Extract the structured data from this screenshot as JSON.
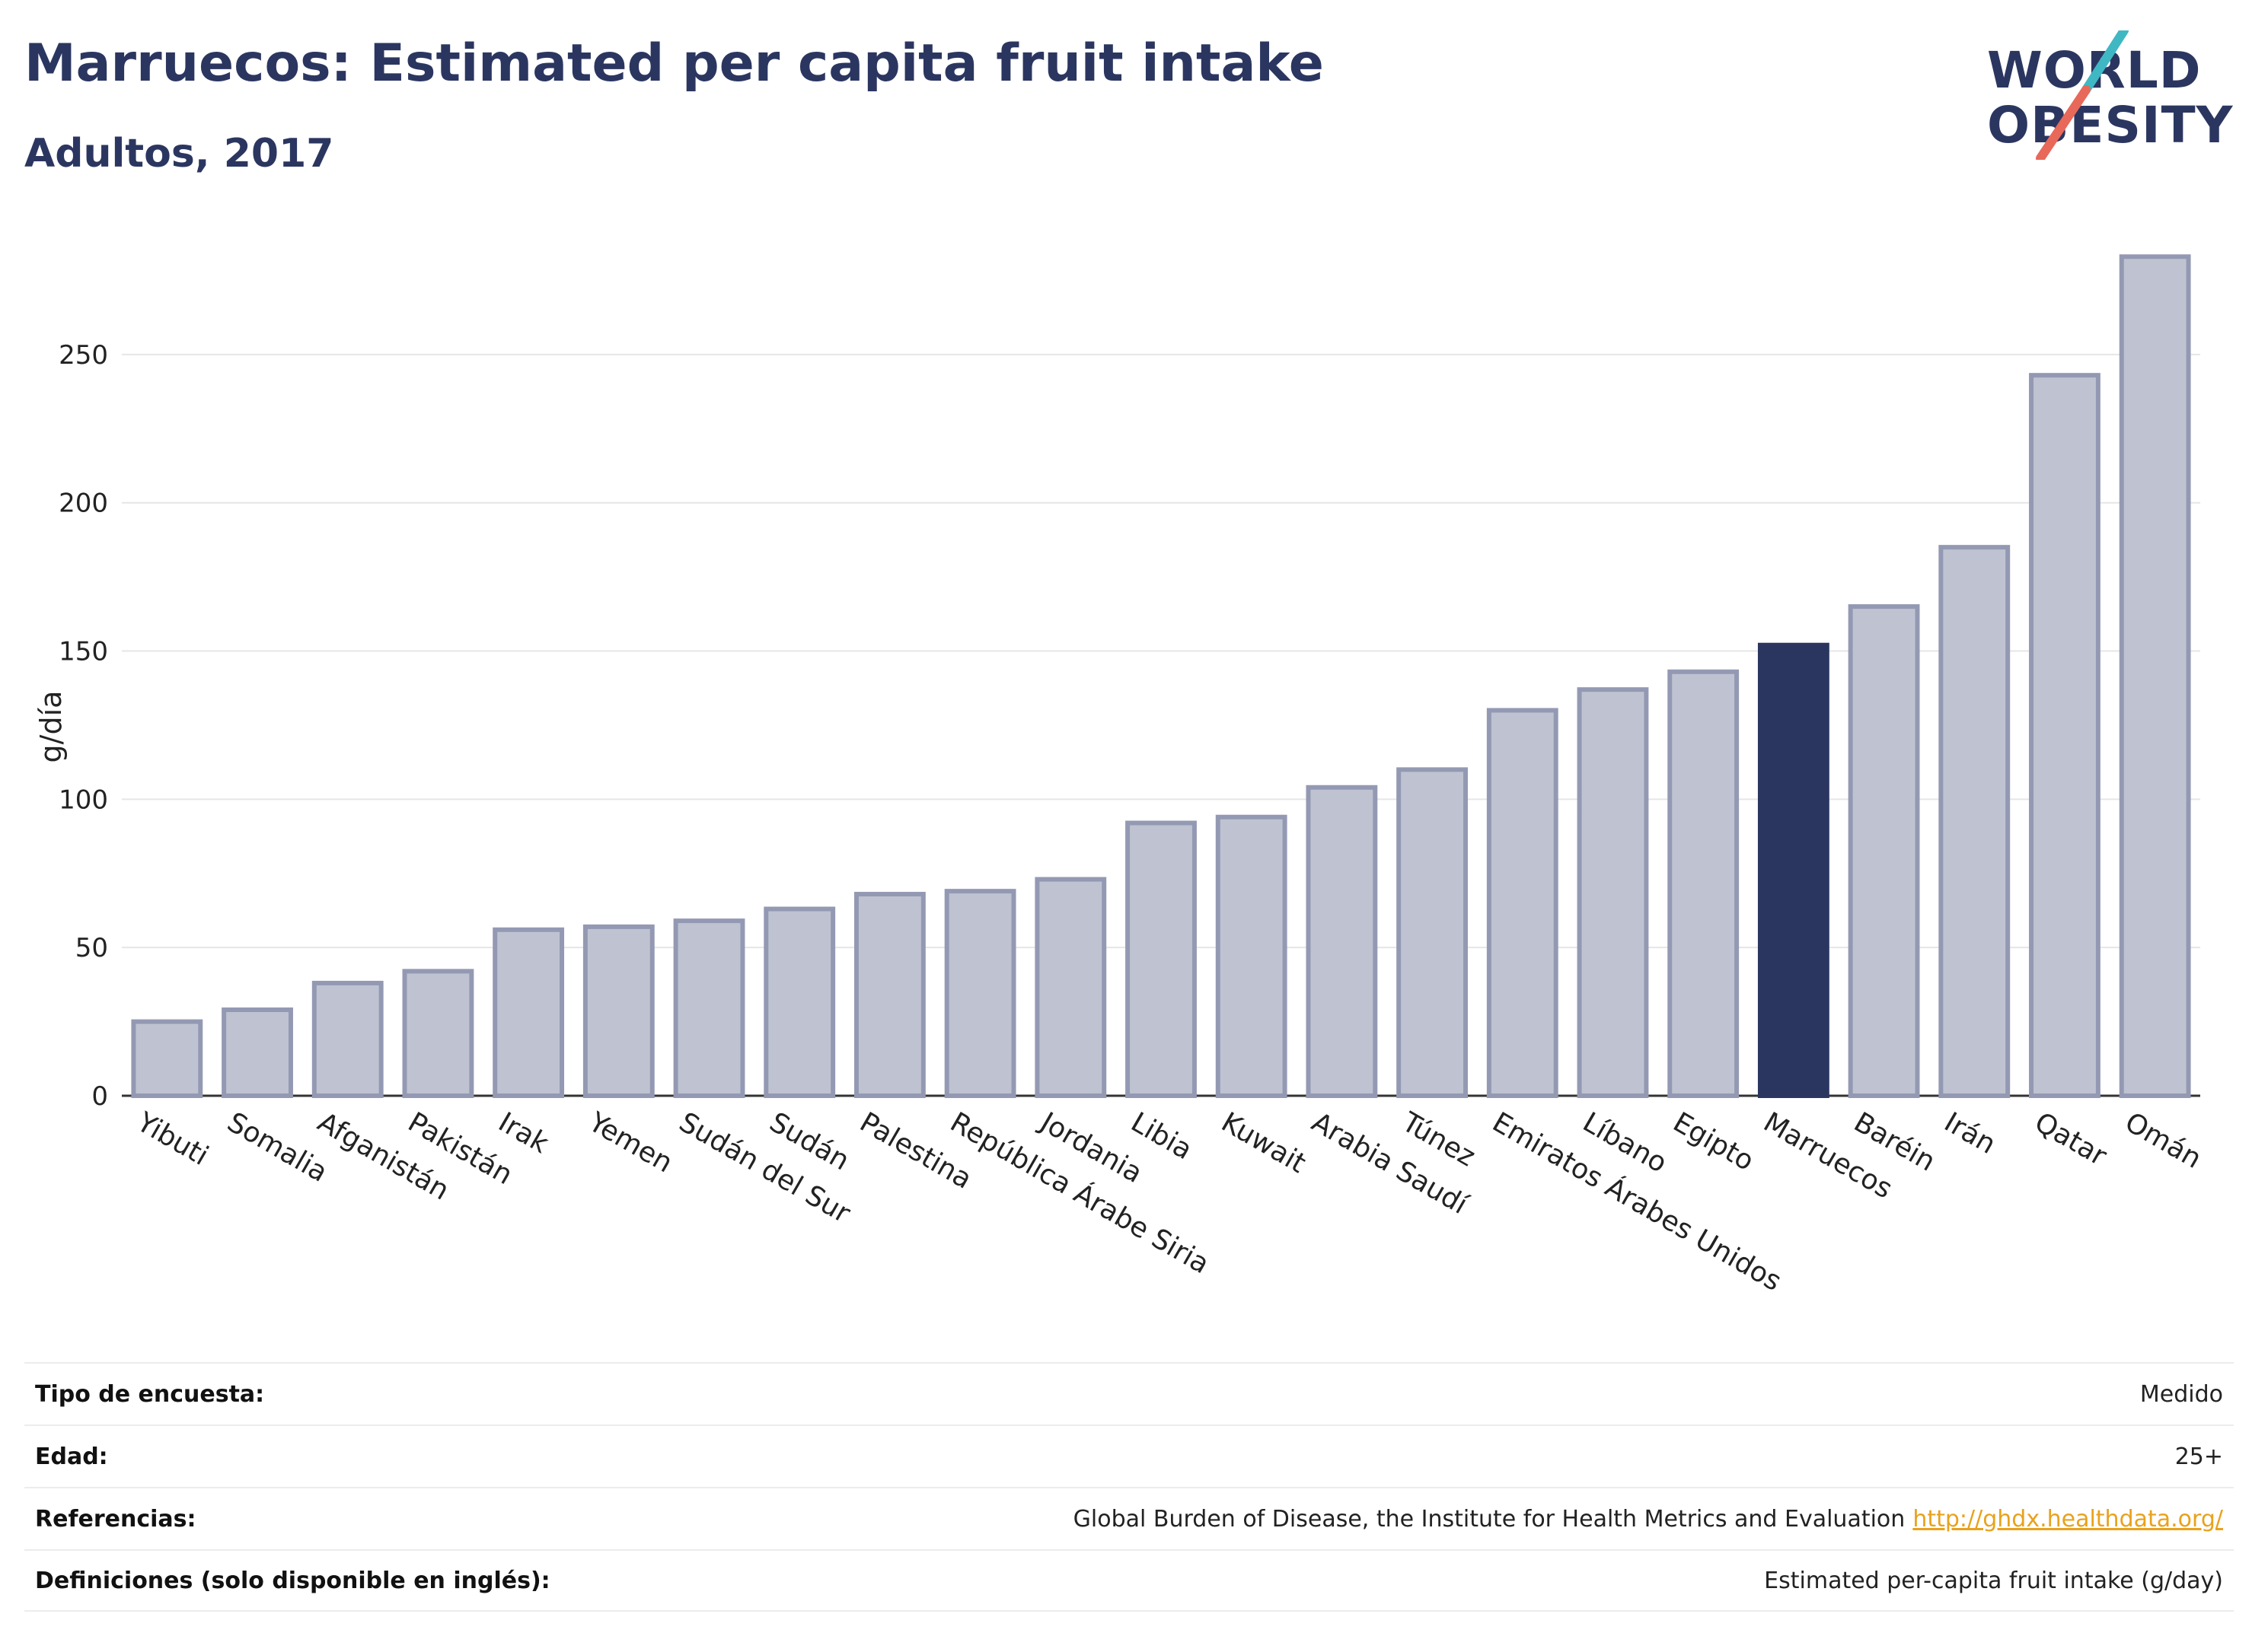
{
  "header": {
    "title": "Marruecos: Estimated per capita fruit intake",
    "subtitle": "Adultos, 2017"
  },
  "logo": {
    "line1": "WORLD",
    "line2": "OBESITY",
    "colors": {
      "text": "#2b3660",
      "slash_top": "#3fb8c4",
      "slash_bottom": "#e8685a"
    }
  },
  "chart_data": {
    "type": "bar",
    "ylabel": "g/día",
    "xlabel": "",
    "ylim": [
      0,
      290
    ],
    "yticks": [
      0,
      50,
      100,
      150,
      200,
      250
    ],
    "grid": true,
    "highlight": "Marruecos",
    "colors": {
      "bar": "#bfc3d1",
      "bar_border": "#9499b3",
      "highlight": "#2b3660",
      "grid": "#e6e6e6"
    },
    "categories": [
      "Yibuti",
      "Somalia",
      "Afganistán",
      "Pakistán",
      "Irak",
      "Yemen",
      "Sudán del Sur",
      "Sudán",
      "Palestina",
      "República Árabe Siria",
      "Jordania",
      "Libia",
      "Kuwait",
      "Arabia Saudí",
      "Túnez",
      "Emiratos Árabes Unidos",
      "Líbano",
      "Egipto",
      "Marruecos",
      "Baréin",
      "Irán",
      "Qatar",
      "Omán"
    ],
    "values": [
      25,
      29,
      38,
      42,
      56,
      57,
      59,
      63,
      68,
      69,
      73,
      92,
      94,
      104,
      110,
      130,
      137,
      143,
      152,
      165,
      185,
      243,
      283
    ]
  },
  "meta": [
    {
      "label": "Tipo de encuesta:",
      "value": "Medido"
    },
    {
      "label": "Edad:",
      "value": "25+"
    },
    {
      "label": "Referencias:",
      "value": "Global Burden of Disease, the Institute for Health Metrics and Evaluation",
      "link": "http://ghdx.healthdata.org/"
    },
    {
      "label": "Definiciones (solo disponible en inglés):",
      "value": "Estimated per-capita fruit intake (g/day)"
    }
  ]
}
